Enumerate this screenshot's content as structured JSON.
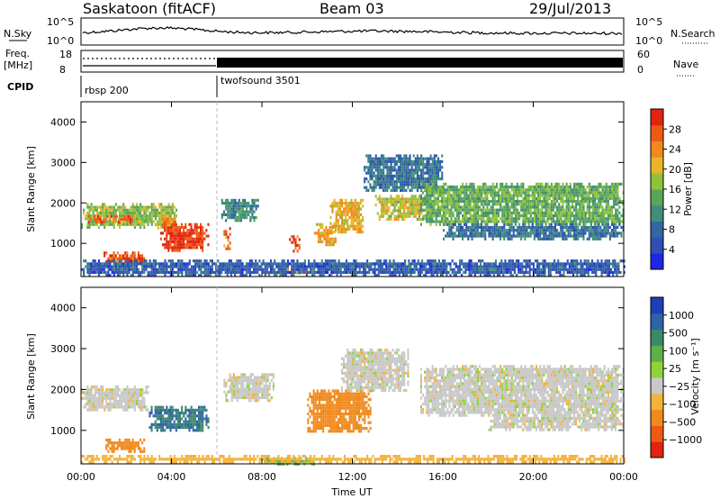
{
  "header": {
    "station": "Saskatoon (fitACF)",
    "beam": "Beam 03",
    "date": "29/Jul/2013"
  },
  "top_panels": {
    "nsky_label": "N.Sky",
    "nsky_ticks": [
      "10^5",
      "10^0"
    ],
    "nsearch_label": "N.Search",
    "nsearch_ticks": [
      "10^5",
      "10^0"
    ],
    "freq_label": "Freq.",
    "freq_unit": "[MHz]",
    "freq_ticks": [
      "18",
      "8"
    ],
    "nave_label": "Nave",
    "nave_ticks": [
      "60",
      "0"
    ],
    "cpid_label": "CPID",
    "cpid_segments": [
      {
        "name": "rbsp 200",
        "start_hour": 0,
        "end_hour": 6
      },
      {
        "name": "twofsound 3501",
        "start_hour": 6,
        "end_hour": 24
      }
    ]
  },
  "chart_data": [
    {
      "type": "heatmap",
      "name": "power",
      "ylabel": "Slant Range [km]",
      "y_ticks": [
        "4000",
        "3000",
        "2000",
        "1000"
      ],
      "ylim": [
        180,
        4500
      ],
      "xlim": [
        0,
        24
      ],
      "x_ticks": [
        "00:00",
        "04:00",
        "08:00",
        "12:00",
        "16:00",
        "20:00",
        "00:00"
      ],
      "colorbar": {
        "label": "Power [dB]",
        "ticks": [
          "28",
          "24",
          "20",
          "16",
          "12",
          "8",
          "4"
        ],
        "range": [
          0,
          30
        ],
        "colors": [
          "#1f26e6",
          "#2e4fb5",
          "#33679f",
          "#3f8e7a",
          "#5aa55a",
          "#8fc23a",
          "#e8b52a",
          "#f08a1e",
          "#ee5a14",
          "#e22310"
        ]
      },
      "echo_regions": [
        {
          "t0": 0.0,
          "t1": 4.2,
          "r0": 1400,
          "r1": 2000,
          "power": 16
        },
        {
          "t0": 0.3,
          "t1": 2.3,
          "r0": 1500,
          "r1": 1700,
          "power": 26
        },
        {
          "t0": 1.0,
          "t1": 2.8,
          "r0": 500,
          "r1": 800,
          "power": 26
        },
        {
          "t0": 3.5,
          "t1": 5.6,
          "r0": 800,
          "r1": 1500,
          "power": 28
        },
        {
          "t0": 3.3,
          "t1": 4.2,
          "r0": 1400,
          "r1": 1700,
          "power": 22
        },
        {
          "t0": 6.2,
          "t1": 7.8,
          "r0": 1600,
          "r1": 2100,
          "power": 10
        },
        {
          "t0": 6.3,
          "t1": 6.6,
          "r0": 900,
          "r1": 1400,
          "power": 24
        },
        {
          "t0": 8.2,
          "t1": 10.2,
          "r0": 250,
          "r1": 380,
          "power": 24
        },
        {
          "t0": 9.2,
          "t1": 9.7,
          "r0": 800,
          "r1": 1200,
          "power": 26
        },
        {
          "t0": 10.3,
          "t1": 11.3,
          "r0": 1000,
          "r1": 1500,
          "power": 20
        },
        {
          "t0": 11.0,
          "t1": 12.5,
          "r0": 1300,
          "r1": 2100,
          "power": 20
        },
        {
          "t0": 13.0,
          "t1": 15.3,
          "r0": 1600,
          "r1": 2200,
          "power": 18
        },
        {
          "t0": 12.5,
          "t1": 16.0,
          "r0": 2300,
          "r1": 3200,
          "power": 8
        },
        {
          "t0": 15.0,
          "t1": 24.0,
          "r0": 1500,
          "r1": 2500,
          "power": 14
        },
        {
          "t0": 16.0,
          "t1": 24.0,
          "r0": 1100,
          "r1": 1500,
          "power": 8
        },
        {
          "t0": 0.0,
          "t1": 24.0,
          "r0": 200,
          "r1": 600,
          "power": 6
        }
      ]
    },
    {
      "type": "heatmap",
      "name": "velocity",
      "ylabel": "Slant Range [km]",
      "y_ticks": [
        "4000",
        "3000",
        "2000",
        "1000"
      ],
      "ylim": [
        180,
        4500
      ],
      "xlim": [
        0,
        24
      ],
      "x_ticks": [
        "00:00",
        "04:00",
        "08:00",
        "12:00",
        "16:00",
        "20:00",
        "00:00"
      ],
      "xlabel": "Time UT",
      "colorbar": {
        "label": "Velocity [m s⁻¹]",
        "ticks": [
          "1000",
          "500",
          "100",
          "25",
          "−25",
          "−100",
          "−500",
          "−1000"
        ],
        "colors": [
          "#1f3fb5",
          "#2e63a8",
          "#3a8a6a",
          "#5fb04a",
          "#8dd33a",
          "#c8c8c8",
          "#f3b23a",
          "#f08a1e",
          "#ee5a14",
          "#e22310"
        ]
      },
      "echo_regions": [
        {
          "t0": 0.0,
          "t1": 3.0,
          "r0": 1500,
          "r1": 2100,
          "vel": 0
        },
        {
          "t0": 1.0,
          "t1": 2.8,
          "r0": 500,
          "r1": 800,
          "vel": -150
        },
        {
          "t0": 3.0,
          "t1": 5.6,
          "r0": 1000,
          "r1": 1600,
          "vel": 300
        },
        {
          "t0": 6.3,
          "t1": 8.5,
          "r0": 1700,
          "r1": 2400,
          "vel": 0
        },
        {
          "t0": 8.0,
          "t1": 10.3,
          "r0": 200,
          "r1": 350,
          "vel": 60
        },
        {
          "t0": 10.0,
          "t1": 12.8,
          "r0": 1000,
          "r1": 2000,
          "vel": -150
        },
        {
          "t0": 11.5,
          "t1": 14.5,
          "r0": 2000,
          "r1": 3000,
          "vel": 0
        },
        {
          "t0": 15.0,
          "t1": 24.0,
          "r0": 1400,
          "r1": 2600,
          "vel": 0
        },
        {
          "t0": 18.0,
          "t1": 24.0,
          "r0": 1000,
          "r1": 1400,
          "vel": 0
        },
        {
          "t0": 0.0,
          "t1": 24.0,
          "r0": 200,
          "r1": 400,
          "vel": -60
        }
      ]
    }
  ]
}
